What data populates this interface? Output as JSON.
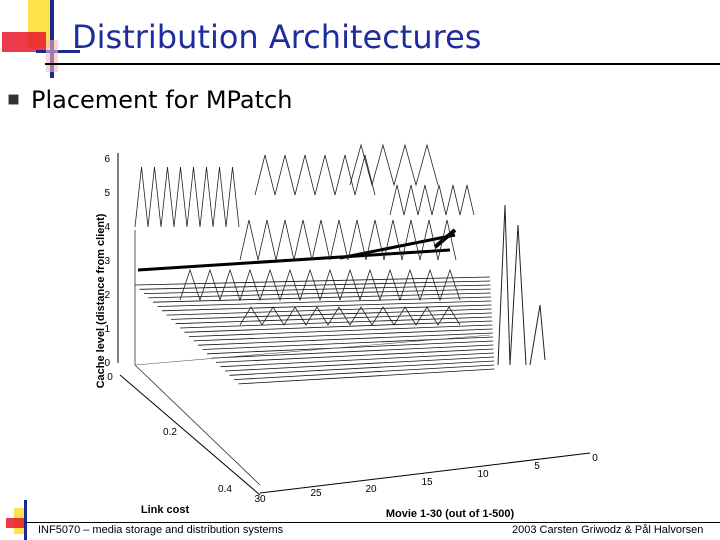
{
  "slide": {
    "title": "Distribution Architectures",
    "bullet": "Placement for MPatch",
    "colors": {
      "title": "#1f2d9c",
      "accent_red": "#e8182a",
      "accent_yellow": "#ffe24a",
      "accent_blue": "#1b2a8f"
    }
  },
  "footer": {
    "left": "INF5070 – media storage and distribution systems",
    "right": "2003  Carsten Griwodz & Pål Halvorsen"
  },
  "chart_data": {
    "type": "surface-3d",
    "zlabel": "Cache level (distance from client)",
    "z_ticks": [
      "0",
      "1",
      "2",
      "3",
      "4",
      "5",
      "6"
    ],
    "ylabel": "Link cost",
    "y_ticks": [
      "0",
      "0.2",
      "0.4"
    ],
    "xlabel": "Movie 1-30 (out of 1-500)",
    "x_ticks": [
      "0",
      "5",
      "10",
      "15",
      "20",
      "25",
      "30"
    ]
  }
}
